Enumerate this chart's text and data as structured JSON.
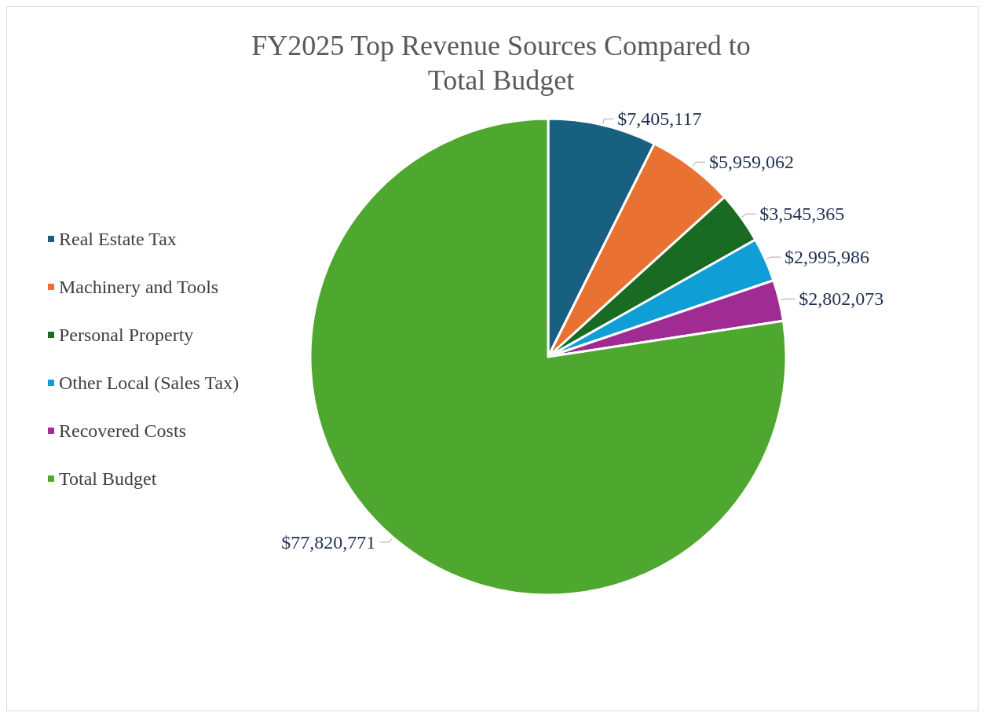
{
  "chart_data": {
    "type": "pie",
    "title": "FY2025 Top Revenue Sources Compared to\nTotal Budget",
    "categories": [
      "Real Estate Tax",
      "Machinery and Tools",
      "Personal Property",
      "Other Local (Sales Tax)",
      "Recovered Costs",
      "Total Budget"
    ],
    "values": [
      7405117,
      5959062,
      3545365,
      2995986,
      2802073,
      77820771
    ],
    "colors": [
      "#17607f",
      "#e97132",
      "#196b24",
      "#0f9ed5",
      "#a02b93",
      "#4ea72e"
    ],
    "value_labels": [
      "$7,405,117",
      "$5,959,062",
      "$3,545,365",
      "$2,995,986",
      "$2,802,073",
      "$77,820,771"
    ],
    "legend": "left"
  }
}
